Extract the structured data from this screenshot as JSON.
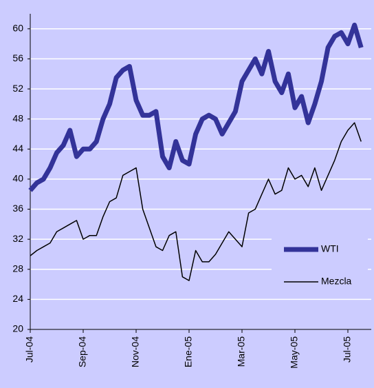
{
  "chart_data": {
    "type": "line",
    "categories": [
      "Jul-04",
      null,
      null,
      null,
      null,
      null,
      null,
      null,
      "Sep-04",
      null,
      null,
      null,
      null,
      null,
      null,
      null,
      "Nov-04",
      null,
      null,
      null,
      null,
      null,
      null,
      null,
      "Ene-05",
      null,
      null,
      null,
      null,
      null,
      null,
      null,
      "Mar-05",
      null,
      null,
      null,
      null,
      null,
      null,
      null,
      "May-05",
      null,
      null,
      null,
      null,
      null,
      null,
      null,
      "Jul-05",
      null,
      null
    ],
    "series": [
      {
        "name": "WTI",
        "color": "#333399",
        "width": 7,
        "values": [
          38.5,
          39.5,
          40,
          41.5,
          43.5,
          44.5,
          46.5,
          43,
          44,
          44,
          45,
          48,
          50,
          53.5,
          54.5,
          55,
          50.5,
          48.5,
          48.5,
          49,
          43,
          41.5,
          45,
          42.5,
          42,
          46,
          48,
          48.5,
          48,
          46,
          47.5,
          49,
          53,
          54.5,
          56,
          54,
          57,
          53,
          51.5,
          54,
          49.5,
          51,
          47.5,
          50,
          53,
          57.5,
          59,
          59.5,
          58,
          60.5,
          57.5
        ]
      },
      {
        "name": "Mezcla",
        "color": "#000000",
        "width": 1.5,
        "values": [
          29.8,
          30.5,
          31,
          31.5,
          33,
          33.5,
          34,
          34.5,
          32,
          32.5,
          32.5,
          35,
          37,
          37.5,
          40.5,
          41,
          41.5,
          36,
          33.5,
          31,
          30.5,
          32.5,
          33,
          27,
          26.5,
          30.5,
          29,
          29,
          30,
          31.5,
          33,
          32,
          31,
          35.5,
          36,
          38,
          40,
          38,
          38.5,
          41.5,
          40,
          40.5,
          39,
          41.5,
          38.5,
          40.5,
          42.5,
          45,
          46.5,
          47.5,
          45
        ]
      }
    ],
    "ylim": [
      20,
      62
    ],
    "yticks": [
      20,
      24,
      28,
      32,
      36,
      40,
      44,
      48,
      52,
      56,
      60
    ],
    "grid": true,
    "legend": "lower right"
  }
}
